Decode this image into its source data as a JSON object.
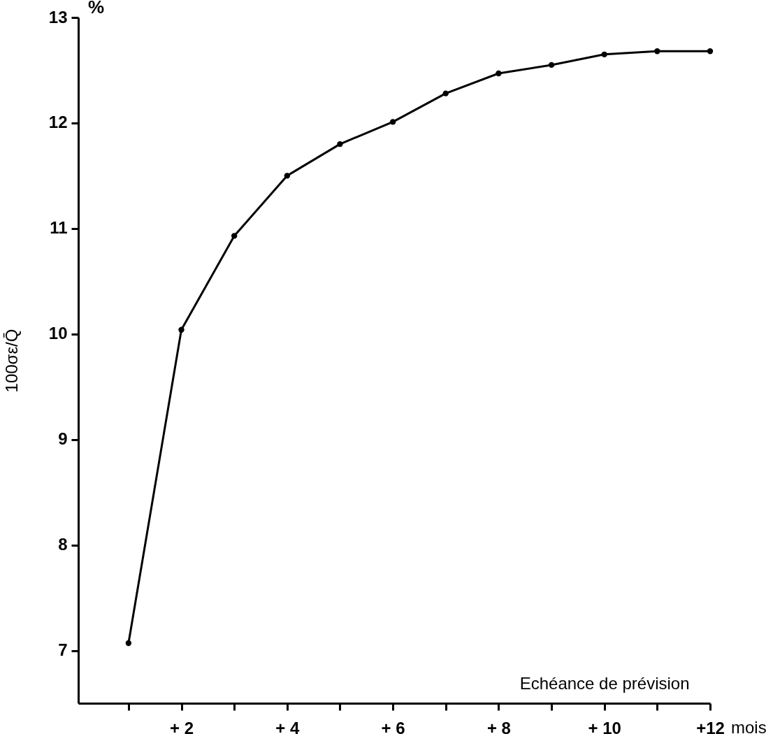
{
  "chart_data": {
    "type": "line",
    "xlabel": "Echéance de prévision",
    "ylabel": "100σε/Q̄",
    "annotations": [
      "%",
      "mois"
    ],
    "x": [
      1,
      2,
      3,
      4,
      5,
      6,
      7,
      8,
      9,
      10,
      11,
      12
    ],
    "series": [
      {
        "color": "#000000",
        "values": [
          7.07,
          10.04,
          10.93,
          11.5,
          11.8,
          12.01,
          12.28,
          12.47,
          12.55,
          12.65,
          12.68,
          12.68
        ]
      }
    ],
    "xlim": [
      0.05,
      12
    ],
    "ylim": [
      6.5,
      13
    ],
    "xticks": [
      {
        "value": 1,
        "label": null
      },
      {
        "value": 2,
        "label": "+ 2"
      },
      {
        "value": 3,
        "label": null
      },
      {
        "value": 4,
        "label": "+ 4"
      },
      {
        "value": 5,
        "label": null
      },
      {
        "value": 6,
        "label": "+ 6"
      },
      {
        "value": 7,
        "label": null
      },
      {
        "value": 8,
        "label": "+ 8"
      },
      {
        "value": 9,
        "label": null
      },
      {
        "value": 10,
        "label": "+ 10"
      },
      {
        "value": 11,
        "label": null
      },
      {
        "value": 12,
        "label": "+12"
      }
    ],
    "yticks": [
      7,
      8,
      9,
      10,
      11,
      12,
      13
    ],
    "grid": false,
    "marker": "circle",
    "line_style": "solid"
  }
}
